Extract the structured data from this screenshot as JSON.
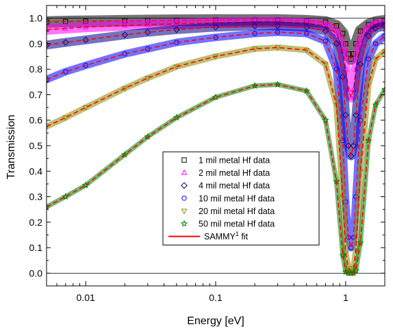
{
  "chart_data": {
    "type": "scatter",
    "xlabel": "Energy [eV]",
    "ylabel": "Transmission",
    "xscale": "log",
    "xlim": [
      0.005,
      2.0
    ],
    "ylim": [
      -0.05,
      1.05
    ],
    "x_ticks": [
      0.01,
      0.1,
      1
    ],
    "x_tick_labels": [
      "0.01",
      "0.1",
      "1"
    ],
    "y_ticks": [
      0.0,
      0.1,
      0.2,
      0.3,
      0.4,
      0.5,
      0.6,
      0.7,
      0.8,
      0.9,
      1.0
    ],
    "y_tick_labels": [
      "0.0",
      "0.1",
      "0.2",
      "0.3",
      "0.4",
      "0.5",
      "0.6",
      "0.7",
      "0.8",
      "0.9",
      "1.0"
    ],
    "reference_lines": [
      0.0,
      1.0
    ],
    "legend_position": "center-right",
    "resonance_energy": 1.1,
    "series": [
      {
        "name": "1 mil metal Hf data",
        "marker": "square-open",
        "color": "#000000",
        "x": [
          0.005,
          0.007,
          0.01,
          0.02,
          0.03,
          0.05,
          0.1,
          0.2,
          0.3,
          0.5,
          0.7,
          0.85,
          0.95,
          1.0,
          1.05,
          1.1,
          1.15,
          1.2,
          1.3,
          1.5,
          1.7,
          2.0
        ],
        "y": [
          0.985,
          0.987,
          0.988,
          0.99,
          0.991,
          0.992,
          0.993,
          0.993,
          0.993,
          0.99,
          0.985,
          0.97,
          0.94,
          0.9,
          0.86,
          0.84,
          0.86,
          0.9,
          0.95,
          0.975,
          0.985,
          0.99
        ]
      },
      {
        "name": "2 mil metal Hf data",
        "marker": "triangle-up-open",
        "color": "#ff00ff",
        "x": [
          0.005,
          0.007,
          0.01,
          0.02,
          0.03,
          0.05,
          0.1,
          0.2,
          0.3,
          0.5,
          0.7,
          0.85,
          0.95,
          1.0,
          1.05,
          1.1,
          1.15,
          1.2,
          1.3,
          1.5,
          1.7,
          2.0
        ],
        "y": [
          0.955,
          0.96,
          0.965,
          0.972,
          0.975,
          0.978,
          0.982,
          0.984,
          0.984,
          0.98,
          0.97,
          0.94,
          0.87,
          0.8,
          0.72,
          0.69,
          0.72,
          0.8,
          0.9,
          0.955,
          0.975,
          0.98
        ]
      },
      {
        "name": "4 mil metal Hf data",
        "marker": "diamond-open",
        "color": "#00008b",
        "x": [
          0.005,
          0.007,
          0.01,
          0.02,
          0.03,
          0.05,
          0.1,
          0.2,
          0.3,
          0.5,
          0.7,
          0.85,
          0.95,
          1.0,
          1.05,
          1.1,
          1.15,
          1.2,
          1.3,
          1.5,
          1.7,
          2.0
        ],
        "y": [
          0.895,
          0.905,
          0.915,
          0.935,
          0.945,
          0.955,
          0.965,
          0.97,
          0.97,
          0.965,
          0.95,
          0.9,
          0.77,
          0.62,
          0.5,
          0.46,
          0.5,
          0.62,
          0.82,
          0.93,
          0.96,
          0.97
        ]
      },
      {
        "name": "10 mil metal Hf data",
        "marker": "circle-open",
        "color": "#0000ff",
        "x": [
          0.005,
          0.007,
          0.01,
          0.02,
          0.03,
          0.05,
          0.1,
          0.2,
          0.3,
          0.5,
          0.7,
          0.85,
          0.95,
          1.0,
          1.05,
          1.1,
          1.15,
          1.2,
          1.3,
          1.5,
          1.7,
          2.0
        ],
        "y": [
          0.76,
          0.79,
          0.815,
          0.86,
          0.88,
          0.905,
          0.925,
          0.94,
          0.945,
          0.94,
          0.91,
          0.8,
          0.52,
          0.28,
          0.14,
          0.1,
          0.14,
          0.3,
          0.6,
          0.84,
          0.9,
          0.93
        ]
      },
      {
        "name": "20 mil metal Hf data",
        "marker": "triangle-down-open",
        "color": "#8b8b00",
        "x": [
          0.005,
          0.007,
          0.01,
          0.02,
          0.03,
          0.05,
          0.1,
          0.2,
          0.3,
          0.5,
          0.7,
          0.85,
          0.95,
          1.0,
          1.05,
          1.1,
          1.15,
          1.2,
          1.3,
          1.5,
          1.7,
          2.0
        ],
        "y": [
          0.575,
          0.61,
          0.65,
          0.725,
          0.765,
          0.81,
          0.85,
          0.88,
          0.885,
          0.875,
          0.82,
          0.66,
          0.3,
          0.08,
          0.02,
          0.01,
          0.02,
          0.09,
          0.4,
          0.74,
          0.84,
          0.87
        ]
      },
      {
        "name": "50 mil metal Hf data",
        "marker": "star-open",
        "color": "#008000",
        "x": [
          0.005,
          0.007,
          0.01,
          0.02,
          0.03,
          0.05,
          0.1,
          0.2,
          0.3,
          0.5,
          0.7,
          0.85,
          0.95,
          1.0,
          1.05,
          1.1,
          1.15,
          1.2,
          1.3,
          1.5,
          1.7,
          2.0
        ],
        "y": [
          0.26,
          0.3,
          0.345,
          0.465,
          0.535,
          0.61,
          0.69,
          0.735,
          0.74,
          0.715,
          0.6,
          0.36,
          0.07,
          0.005,
          0.0,
          0.0,
          0.0,
          0.01,
          0.12,
          0.52,
          0.66,
          0.72
        ]
      }
    ],
    "fit": {
      "name": "SAMMY",
      "name_superscript": "1",
      "name_suffix": " fit",
      "color": "#ff0000"
    }
  }
}
